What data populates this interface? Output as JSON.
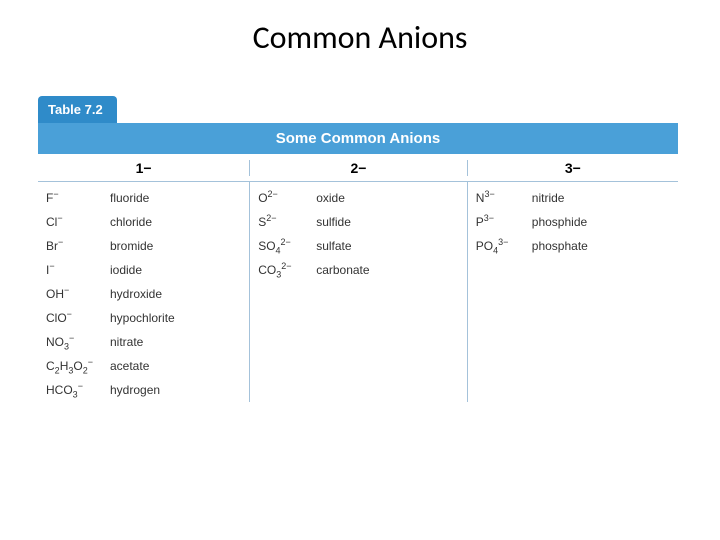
{
  "title": "Common Anions",
  "table": {
    "tab_label": "Table 7.2",
    "tab_bg": "#2f8bc9",
    "banner_label": "Some Common Anions",
    "banner_bg": "#4aa0d8",
    "border_color": "#a4c2da",
    "columns": [
      {
        "header": "1−"
      },
      {
        "header": "2−"
      },
      {
        "header": "3−"
      }
    ],
    "col1": [
      {
        "formula_html": "F<sup>−</sup>",
        "name": "fluoride"
      },
      {
        "formula_html": "Cl<sup>−</sup>",
        "name": "chloride"
      },
      {
        "formula_html": "Br<sup>−</sup>",
        "name": "bromide"
      },
      {
        "formula_html": "I<sup>−</sup>",
        "name": "iodide"
      },
      {
        "formula_html": "OH<sup>−</sup>",
        "name": "hydroxide"
      },
      {
        "formula_html": "ClO<sup>−</sup>",
        "name": "hypochlorite"
      },
      {
        "formula_html": "NO<sub>3</sub><sup>−</sup>",
        "name": "nitrate"
      },
      {
        "formula_html": "C<sub>2</sub>H<sub>3</sub>O<sub>2</sub><sup>−</sup>",
        "name": "acetate"
      },
      {
        "formula_html": "HCO<sub>3</sub><sup>−</sup>",
        "name": "hydrogen"
      }
    ],
    "col2": [
      {
        "formula_html": "O<sup>2−</sup>",
        "name": "oxide"
      },
      {
        "formula_html": "S<sup>2−</sup>",
        "name": "sulfide"
      },
      {
        "formula_html": "SO<sub>4</sub><sup>2−</sup>",
        "name": "sulfate"
      },
      {
        "formula_html": "CO<sub>3</sub><sup>2−</sup>",
        "name": "carbonate"
      }
    ],
    "col3": [
      {
        "formula_html": "N<sup>3−</sup>",
        "name": "nitride"
      },
      {
        "formula_html": "P<sup>3−</sup>",
        "name": "phosphide"
      },
      {
        "formula_html": "PO<sub>4</sub><sup>3−</sup>",
        "name": "phosphate"
      }
    ]
  },
  "text_color": "#333333",
  "header_text_color": "#000000",
  "background_color": "#ffffff",
  "title_fontsize": 32,
  "cell_fontsize": 12
}
